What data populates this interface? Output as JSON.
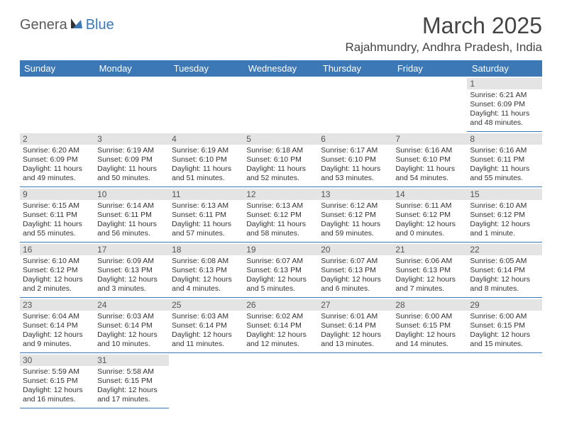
{
  "logo": {
    "part1": "Genera",
    "part2": "Blue"
  },
  "title": "March 2025",
  "location": "Rajahmundry, Andhra Pradesh, India",
  "colors": {
    "header_bg": "#3b78b5",
    "header_text": "#ffffff",
    "daynum_bg": "#e4e4e4",
    "cell_border": "#3b78b5",
    "body_text": "#333333",
    "logo_gray": "#5a5a5a",
    "logo_blue": "#3b78b5"
  },
  "weekdays": [
    "Sunday",
    "Monday",
    "Tuesday",
    "Wednesday",
    "Thursday",
    "Friday",
    "Saturday"
  ],
  "weeks": [
    [
      null,
      null,
      null,
      null,
      null,
      null,
      {
        "n": "1",
        "sr": "Sunrise: 6:21 AM",
        "ss": "Sunset: 6:09 PM",
        "dl": "Daylight: 11 hours and 48 minutes."
      }
    ],
    [
      {
        "n": "2",
        "sr": "Sunrise: 6:20 AM",
        "ss": "Sunset: 6:09 PM",
        "dl": "Daylight: 11 hours and 49 minutes."
      },
      {
        "n": "3",
        "sr": "Sunrise: 6:19 AM",
        "ss": "Sunset: 6:09 PM",
        "dl": "Daylight: 11 hours and 50 minutes."
      },
      {
        "n": "4",
        "sr": "Sunrise: 6:19 AM",
        "ss": "Sunset: 6:10 PM",
        "dl": "Daylight: 11 hours and 51 minutes."
      },
      {
        "n": "5",
        "sr": "Sunrise: 6:18 AM",
        "ss": "Sunset: 6:10 PM",
        "dl": "Daylight: 11 hours and 52 minutes."
      },
      {
        "n": "6",
        "sr": "Sunrise: 6:17 AM",
        "ss": "Sunset: 6:10 PM",
        "dl": "Daylight: 11 hours and 53 minutes."
      },
      {
        "n": "7",
        "sr": "Sunrise: 6:16 AM",
        "ss": "Sunset: 6:10 PM",
        "dl": "Daylight: 11 hours and 54 minutes."
      },
      {
        "n": "8",
        "sr": "Sunrise: 6:16 AM",
        "ss": "Sunset: 6:11 PM",
        "dl": "Daylight: 11 hours and 55 minutes."
      }
    ],
    [
      {
        "n": "9",
        "sr": "Sunrise: 6:15 AM",
        "ss": "Sunset: 6:11 PM",
        "dl": "Daylight: 11 hours and 55 minutes."
      },
      {
        "n": "10",
        "sr": "Sunrise: 6:14 AM",
        "ss": "Sunset: 6:11 PM",
        "dl": "Daylight: 11 hours and 56 minutes."
      },
      {
        "n": "11",
        "sr": "Sunrise: 6:13 AM",
        "ss": "Sunset: 6:11 PM",
        "dl": "Daylight: 11 hours and 57 minutes."
      },
      {
        "n": "12",
        "sr": "Sunrise: 6:13 AM",
        "ss": "Sunset: 6:12 PM",
        "dl": "Daylight: 11 hours and 58 minutes."
      },
      {
        "n": "13",
        "sr": "Sunrise: 6:12 AM",
        "ss": "Sunset: 6:12 PM",
        "dl": "Daylight: 11 hours and 59 minutes."
      },
      {
        "n": "14",
        "sr": "Sunrise: 6:11 AM",
        "ss": "Sunset: 6:12 PM",
        "dl": "Daylight: 12 hours and 0 minutes."
      },
      {
        "n": "15",
        "sr": "Sunrise: 6:10 AM",
        "ss": "Sunset: 6:12 PM",
        "dl": "Daylight: 12 hours and 1 minute."
      }
    ],
    [
      {
        "n": "16",
        "sr": "Sunrise: 6:10 AM",
        "ss": "Sunset: 6:12 PM",
        "dl": "Daylight: 12 hours and 2 minutes."
      },
      {
        "n": "17",
        "sr": "Sunrise: 6:09 AM",
        "ss": "Sunset: 6:13 PM",
        "dl": "Daylight: 12 hours and 3 minutes."
      },
      {
        "n": "18",
        "sr": "Sunrise: 6:08 AM",
        "ss": "Sunset: 6:13 PM",
        "dl": "Daylight: 12 hours and 4 minutes."
      },
      {
        "n": "19",
        "sr": "Sunrise: 6:07 AM",
        "ss": "Sunset: 6:13 PM",
        "dl": "Daylight: 12 hours and 5 minutes."
      },
      {
        "n": "20",
        "sr": "Sunrise: 6:07 AM",
        "ss": "Sunset: 6:13 PM",
        "dl": "Daylight: 12 hours and 6 minutes."
      },
      {
        "n": "21",
        "sr": "Sunrise: 6:06 AM",
        "ss": "Sunset: 6:13 PM",
        "dl": "Daylight: 12 hours and 7 minutes."
      },
      {
        "n": "22",
        "sr": "Sunrise: 6:05 AM",
        "ss": "Sunset: 6:14 PM",
        "dl": "Daylight: 12 hours and 8 minutes."
      }
    ],
    [
      {
        "n": "23",
        "sr": "Sunrise: 6:04 AM",
        "ss": "Sunset: 6:14 PM",
        "dl": "Daylight: 12 hours and 9 minutes."
      },
      {
        "n": "24",
        "sr": "Sunrise: 6:03 AM",
        "ss": "Sunset: 6:14 PM",
        "dl": "Daylight: 12 hours and 10 minutes."
      },
      {
        "n": "25",
        "sr": "Sunrise: 6:03 AM",
        "ss": "Sunset: 6:14 PM",
        "dl": "Daylight: 12 hours and 11 minutes."
      },
      {
        "n": "26",
        "sr": "Sunrise: 6:02 AM",
        "ss": "Sunset: 6:14 PM",
        "dl": "Daylight: 12 hours and 12 minutes."
      },
      {
        "n": "27",
        "sr": "Sunrise: 6:01 AM",
        "ss": "Sunset: 6:14 PM",
        "dl": "Daylight: 12 hours and 13 minutes."
      },
      {
        "n": "28",
        "sr": "Sunrise: 6:00 AM",
        "ss": "Sunset: 6:15 PM",
        "dl": "Daylight: 12 hours and 14 minutes."
      },
      {
        "n": "29",
        "sr": "Sunrise: 6:00 AM",
        "ss": "Sunset: 6:15 PM",
        "dl": "Daylight: 12 hours and 15 minutes."
      }
    ],
    [
      {
        "n": "30",
        "sr": "Sunrise: 5:59 AM",
        "ss": "Sunset: 6:15 PM",
        "dl": "Daylight: 12 hours and 16 minutes."
      },
      {
        "n": "31",
        "sr": "Sunrise: 5:58 AM",
        "ss": "Sunset: 6:15 PM",
        "dl": "Daylight: 12 hours and 17 minutes."
      },
      null,
      null,
      null,
      null,
      null
    ]
  ]
}
